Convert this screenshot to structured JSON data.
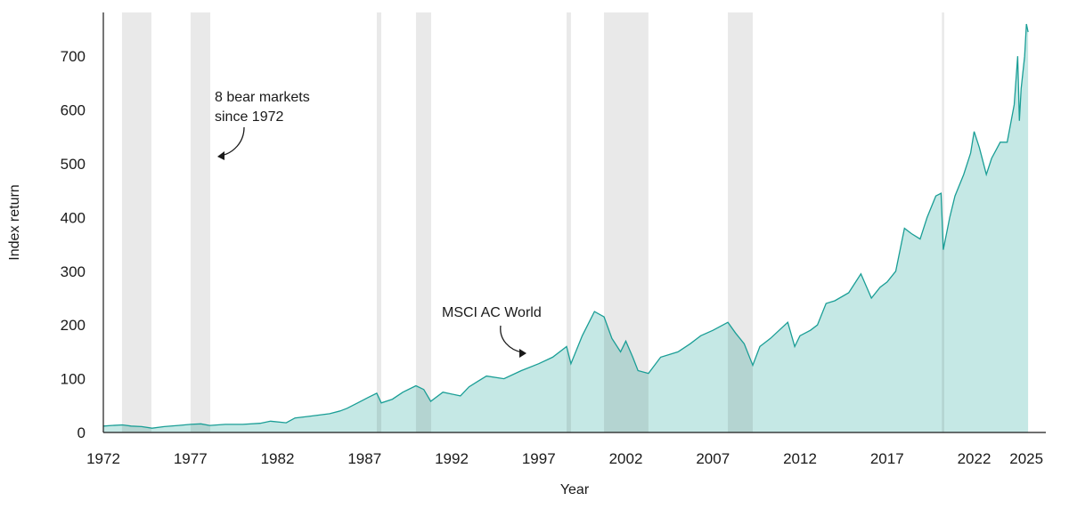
{
  "chart_data": {
    "type": "area",
    "title": "",
    "xlabel": "Year",
    "ylabel": "Index return",
    "xlim": [
      1972,
      2025.1
    ],
    "ylim": [
      0,
      780
    ],
    "x_ticks": [
      1972,
      1977,
      1982,
      1987,
      1992,
      1997,
      2002,
      2007,
      2012,
      2017,
      2022,
      2025
    ],
    "y_ticks": [
      0,
      100,
      200,
      300,
      400,
      500,
      600,
      700
    ],
    "grid": false,
    "colors": {
      "line": "#1a9e96",
      "fill": "#c5e8e5",
      "bear_band": "#000000"
    },
    "series": [
      {
        "name": "MSCI AC World",
        "x": [
          1972,
          1972.5,
          1973.1,
          1973.6,
          1974.2,
          1974.8,
          1975.5,
          1976.3,
          1977,
          1977.6,
          1978.1,
          1979,
          1980,
          1981,
          1981.6,
          1982.5,
          1983,
          1983.8,
          1984.5,
          1985,
          1985.6,
          1986,
          1986.6,
          1987.2,
          1987.7,
          1987.96,
          1988.6,
          1989.2,
          1989.95,
          1990.4,
          1990.8,
          1991.5,
          1992.5,
          1993,
          1993.5,
          1994,
          1995,
          1996,
          1997,
          1997.8,
          1998.6,
          1998.85,
          1999.5,
          2000.2,
          2000.75,
          2001.2,
          2001.7,
          2002,
          2002.4,
          2002.7,
          2003.3,
          2004,
          2005,
          2005.7,
          2006.3,
          2007,
          2007.86,
          2008.3,
          2008.8,
          2009.29,
          2009.7,
          2010.3,
          2011.3,
          2011.7,
          2012,
          2012.6,
          2013,
          2013.5,
          2014,
          2014.8,
          2015.5,
          2016.1,
          2016.6,
          2017,
          2017.5,
          2018,
          2018.4,
          2018.9,
          2019.3,
          2019.8,
          2020.1,
          2020.23,
          2020.6,
          2020.9,
          2021.4,
          2021.8,
          2022.0,
          2022.3,
          2022.7,
          2023,
          2023.5,
          2023.9,
          2024.3,
          2024.5,
          2024.6,
          2024.7,
          2024.9,
          2025,
          2025.1
        ],
        "y": [
          12,
          13,
          14,
          12,
          11,
          8,
          11,
          13,
          15,
          16,
          13,
          15,
          15,
          17,
          21,
          18,
          27,
          30,
          33,
          35,
          40,
          45,
          55,
          65,
          73,
          55,
          62,
          75,
          87,
          80,
          58,
          75,
          68,
          85,
          95,
          105,
          100,
          115,
          128,
          140,
          160,
          128,
          180,
          225,
          215,
          175,
          150,
          170,
          140,
          115,
          110,
          140,
          150,
          165,
          180,
          190,
          205,
          185,
          165,
          125,
          160,
          175,
          205,
          160,
          180,
          190,
          200,
          240,
          245,
          260,
          295,
          250,
          270,
          280,
          300,
          380,
          370,
          360,
          400,
          440,
          445,
          340,
          400,
          440,
          480,
          520,
          560,
          530,
          480,
          510,
          540,
          540,
          610,
          700,
          580,
          640,
          700,
          760,
          745
        ]
      }
    ],
    "bear_markets": [
      [
        1973.07,
        1974.76
      ],
      [
        1977.01,
        1978.14
      ],
      [
        1987.7,
        1987.96
      ],
      [
        1989.95,
        1990.82
      ],
      [
        1998.6,
        1998.85
      ],
      [
        2000.75,
        2003.3
      ],
      [
        2007.86,
        2009.29
      ],
      [
        2020.15,
        2020.28
      ]
    ],
    "annotations": {
      "bear_markets_line1": "8 bear markets",
      "bear_markets_line2": "since 1972",
      "series_label": "MSCI AC World"
    }
  }
}
